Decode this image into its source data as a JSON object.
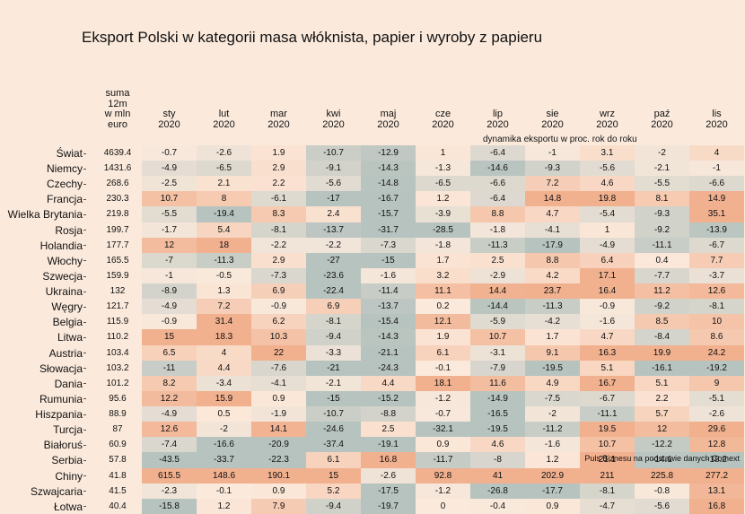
{
  "title": "Eksport Polski w kategorii masa włóknista, papier i wyroby z papieru",
  "subtitle": "dynamika eksportu w proc. rok do roku",
  "source": "Puls Biznesu na podstawie danych Comext",
  "chart_data": {
    "type": "heatmap",
    "sum_header": "suma\n12m\nw mln\neuro",
    "columns": [
      "sty\n2020",
      "lut\n2020",
      "mar\n2020",
      "kwi\n2020",
      "maj\n2020",
      "cze\n2020",
      "lip\n2020",
      "sie\n2020",
      "wrz\n2020",
      "paź\n2020",
      "lis\n2020"
    ],
    "rows": [
      {
        "country": "Świat",
        "sum": "4639.4",
        "values": [
          -0.7,
          -2.6,
          1.9,
          -10.7,
          -12.9,
          1,
          -6.4,
          -1,
          3.1,
          -2,
          4
        ]
      },
      {
        "country": "Niemcy",
        "sum": "1431.6",
        "values": [
          -4.9,
          -6.5,
          2.9,
          -9.1,
          -14.3,
          -1.3,
          -14.6,
          -9.3,
          -5.6,
          -2.1,
          -1
        ]
      },
      {
        "country": "Czechy",
        "sum": "268.6",
        "values": [
          -2.5,
          2.1,
          2.2,
          -5.6,
          -14.8,
          -6.5,
          -6.6,
          7.2,
          4.6,
          -5.5,
          -6.6
        ]
      },
      {
        "country": "Francja",
        "sum": "230.3",
        "values": [
          10.7,
          8,
          -6.1,
          -17,
          -16.7,
          1.2,
          -6.4,
          14.8,
          19.8,
          8.1,
          14.9
        ]
      },
      {
        "country": "Wielka Brytania",
        "sum": "219.8",
        "values": [
          -5.5,
          -19.4,
          8.3,
          2.4,
          -15.7,
          -3.9,
          8.8,
          4.7,
          -5.4,
          -9.3,
          35.1
        ]
      },
      {
        "country": "Rosja",
        "sum": "199.7",
        "values": [
          -1.7,
          5.4,
          -8.1,
          -13.7,
          -31.7,
          -28.5,
          -1.8,
          -4.1,
          1,
          -9.2,
          -13.9
        ]
      },
      {
        "country": "Holandia",
        "sum": "177.7",
        "values": [
          12,
          18,
          -2.2,
          -2.2,
          -7.3,
          -1.8,
          -11.3,
          -17.9,
          -4.9,
          -11.1,
          -6.7
        ]
      },
      {
        "country": "Włochy",
        "sum": "165.5",
        "values": [
          -7,
          -11.3,
          2.9,
          -27,
          -15,
          1.7,
          2.5,
          8.8,
          6.4,
          0.4,
          7.7
        ]
      },
      {
        "country": "Szwecja",
        "sum": "159.9",
        "values": [
          -1,
          -0.5,
          -7.3,
          -23.6,
          -1.6,
          3.2,
          -2.9,
          4.2,
          17.1,
          -7.7,
          -3.7
        ]
      },
      {
        "country": "Ukraina",
        "sum": "132",
        "values": [
          -8.9,
          1.3,
          6.9,
          -22.4,
          -11.4,
          11.1,
          14.4,
          23.7,
          16.4,
          11.2,
          12.6
        ]
      },
      {
        "country": "Węgry",
        "sum": "121.7",
        "values": [
          -4.9,
          7.2,
          -0.9,
          6.9,
          -13.7,
          0.2,
          -14.4,
          -11.3,
          -0.9,
          -9.2,
          -8.1
        ]
      },
      {
        "country": "Belgia",
        "sum": "115.9",
        "values": [
          -0.9,
          31.4,
          6.2,
          -8.1,
          -15.4,
          12.1,
          -5.9,
          -4.2,
          -1.6,
          8.5,
          10
        ]
      },
      {
        "country": "Litwa",
        "sum": "110.2",
        "values": [
          15,
          18.3,
          10.3,
          -9.4,
          -14.3,
          1.9,
          10.7,
          1.7,
          4.7,
          -8.4,
          8.6
        ]
      },
      {
        "country": "Austria",
        "sum": "103.4",
        "values": [
          6.5,
          4,
          22,
          -3.3,
          -21.1,
          6.1,
          -3.1,
          9.1,
          16.3,
          19.9,
          24.2
        ]
      },
      {
        "country": "Słowacja",
        "sum": "103.2",
        "values": [
          -11,
          4.4,
          -7.6,
          -21,
          -24.3,
          -0.1,
          -7.9,
          -19.5,
          5.1,
          -16.1,
          -19.2
        ]
      },
      {
        "country": "Dania",
        "sum": "101.2",
        "values": [
          8.2,
          -3.4,
          -4.1,
          -2.1,
          4.4,
          18.1,
          11.6,
          4.9,
          16.7,
          5.1,
          9
        ]
      },
      {
        "country": "Rumunia",
        "sum": "95.6",
        "values": [
          12.2,
          15.9,
          0.9,
          -15,
          -15.2,
          -1.2,
          -14.9,
          -7.5,
          -6.7,
          2.2,
          -5.1
        ]
      },
      {
        "country": "Hiszpania",
        "sum": "88.9",
        "values": [
          -4.9,
          0.5,
          -1.9,
          -10.7,
          -8.8,
          -0.7,
          -16.5,
          -2,
          -11.1,
          5.7,
          -2.6
        ]
      },
      {
        "country": "Turcja",
        "sum": "87",
        "values": [
          12.6,
          -2,
          14.1,
          -24.6,
          2.5,
          -32.1,
          -19.5,
          -11.2,
          19.5,
          12,
          29.6
        ]
      },
      {
        "country": "Białoruś",
        "sum": "60.9",
        "values": [
          -7.4,
          -16.6,
          -20.9,
          -37.4,
          -19.1,
          0.9,
          4.6,
          -1.6,
          10.7,
          -12.2,
          12.8
        ]
      },
      {
        "country": "Serbia",
        "sum": "57.8",
        "values": [
          -43.5,
          -33.7,
          -22.3,
          6.1,
          16.8,
          -11.7,
          -8,
          1.2,
          21.1,
          -14.1,
          -18.2
        ]
      },
      {
        "country": "Chiny",
        "sum": "41.8",
        "values": [
          615.5,
          148.6,
          190.1,
          15,
          -2.6,
          92.8,
          41,
          202.9,
          211,
          225.8,
          277.2
        ]
      },
      {
        "country": "Szwajcaria",
        "sum": "41.5",
        "values": [
          -2.3,
          -0.1,
          0.9,
          5.2,
          -17.5,
          -1.2,
          -26.8,
          -17.7,
          -8.1,
          -0.8,
          13.1
        ]
      },
      {
        "country": "Łotwa",
        "sum": "40.4",
        "values": [
          -15.8,
          1.2,
          7.9,
          -9.4,
          -19.7,
          0,
          -0.4,
          0.9,
          -4.7,
          -5.6,
          16.8
        ]
      }
    ],
    "colors": {
      "negative": "#b7c3bf",
      "positive": "#f1b08e",
      "neutral": "#fbeadc"
    }
  }
}
